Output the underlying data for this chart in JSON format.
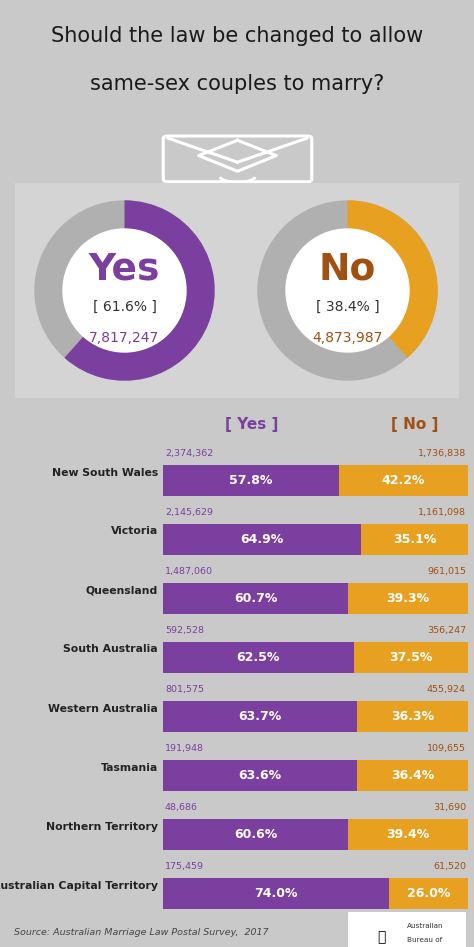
{
  "title_line1": "Should the law be changed to allow",
  "title_line2": "same-sex couples to marry?",
  "bg_color": "#c9c9c9",
  "yes_color": "#7b3fa0",
  "no_color": "#e8a020",
  "no_text_color": "#a05010",
  "yes_pct": 61.6,
  "no_pct": 38.4,
  "yes_label": "Yes",
  "no_label": "No",
  "yes_pct_label": "[ 61.6% ]",
  "no_pct_label": "[ 38.4% ]",
  "yes_count": "7,817,247",
  "no_count": "4,873,987",
  "donut_bg": "#b0b0b0",
  "states": [
    "New South Wales",
    "Victoria",
    "Queensland",
    "South Australia",
    "Western Australia",
    "Tasmania",
    "Northern Territory",
    "Australian Capital Territory"
  ],
  "yes_counts": [
    "2,374,362",
    "2,145,629",
    "1,487,060",
    "592,528",
    "801,575",
    "191,948",
    "48,686",
    "175,459"
  ],
  "no_counts": [
    "1,736,838",
    "1,161,098",
    "961,015",
    "356,247",
    "455,924",
    "109,655",
    "31,690",
    "61,520"
  ],
  "yes_pcts": [
    57.8,
    64.9,
    60.7,
    62.5,
    63.7,
    63.6,
    60.6,
    74.0
  ],
  "no_pcts": [
    42.2,
    35.1,
    39.3,
    37.5,
    36.3,
    36.4,
    39.4,
    26.0
  ],
  "yes_pct_labels": [
    "57.8%",
    "64.9%",
    "60.7%",
    "62.5%",
    "63.7%",
    "63.6%",
    "60.6%",
    "74.0%"
  ],
  "no_pct_labels": [
    "42.2%",
    "35.1%",
    "39.3%",
    "37.5%",
    "36.3%",
    "36.4%",
    "39.4%",
    "26.0%"
  ],
  "bar_yes_color": "#7b3fa0",
  "bar_no_color": "#e8a020",
  "source_text": "Source: Australian Marriage Law Postal Survey,  2017",
  "header_yes": "[ Yes ]",
  "header_no": "[ No ]"
}
